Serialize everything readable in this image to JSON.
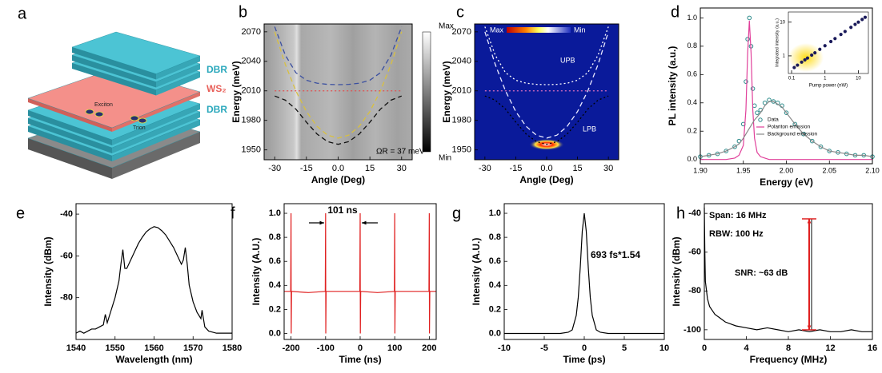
{
  "diagram": {
    "panel": "a",
    "layers": [
      "DBR",
      "WS₂",
      "DBR"
    ],
    "particles": [
      "Exciton",
      "Trion"
    ]
  },
  "chart_data": [
    {
      "type": "line",
      "panel": "b",
      "xlabel": "Angle (Deg)",
      "ylabel": "Energy (meV)",
      "xlim": [
        -35,
        35
      ],
      "ylim": [
        1940,
        2078
      ],
      "xticks": [
        -30,
        -15,
        {
          "value": 0,
          "label": "0.0"
        },
        15,
        30
      ],
      "yticks": [
        1950,
        1980,
        2010,
        2040,
        2070
      ],
      "x": [
        -30,
        -25,
        -20,
        -15,
        -10,
        -5,
        0,
        5,
        10,
        15,
        20,
        25,
        30
      ],
      "series": [
        {
          "color": "#d8c040",
          "style": "dashed",
          "values": [
            2070,
            2037,
            2010,
            1989,
            1974,
            1965,
            1962,
            1965,
            1974,
            1989,
            2010,
            2037,
            2070
          ]
        },
        {
          "color": "#e05050",
          "style": "dotted",
          "values": [
            2010,
            2010,
            2010,
            2010,
            2010,
            2010,
            2010,
            2010,
            2010,
            2010,
            2010,
            2010,
            2010
          ]
        },
        {
          "color": "#3a4fa0",
          "style": "dashed",
          "values": [
            2075.2,
            2046.4,
            2028.5,
            2020.8,
            2017.8,
            2016.6,
            2016.3,
            2016.6,
            2017.8,
            2020.8,
            2028.5,
            2046.4,
            2075.2
          ]
        },
        {
          "color": "#111111",
          "style": "dashed",
          "values": [
            2004.8,
            2000.6,
            1991.5,
            1978.2,
            1966.2,
            1958.4,
            1955.7,
            1958.4,
            1966.2,
            1978.2,
            1991.5,
            2000.6,
            2004.8
          ]
        }
      ],
      "annotations": [
        "ΩR = 37 meV"
      ],
      "colorbar": [
        "Max",
        "Min"
      ]
    },
    {
      "type": "line",
      "panel": "c",
      "xlabel": "Angle (Deg)",
      "ylabel": "Energy (meV)",
      "xlim": [
        -35,
        35
      ],
      "ylim": [
        1940,
        2078
      ],
      "xticks": [
        -30,
        -15,
        {
          "value": 0,
          "label": "0.0"
        },
        15,
        30
      ],
      "yticks": [
        1950,
        1980,
        2010,
        2040,
        2070
      ],
      "x": [
        -30,
        -25,
        -20,
        -15,
        -10,
        -5,
        0,
        5,
        10,
        15,
        20,
        25,
        30
      ],
      "series": [
        {
          "color": "#e8e8ff",
          "style": "dashed",
          "values": [
            2070,
            2037,
            2010,
            1989,
            1974,
            1965,
            1962,
            1965,
            1974,
            1989,
            2010,
            2037,
            2070
          ]
        },
        {
          "color": "#e070c0",
          "style": "dotted",
          "values": [
            2010,
            2010,
            2010,
            2010,
            2010,
            2010,
            2010,
            2010,
            2010,
            2010,
            2010,
            2010,
            2010
          ]
        },
        {
          "color": "#ffffff",
          "style": "dotted",
          "values": [
            2075.2,
            2046.4,
            2028.5,
            2020.8,
            2017.8,
            2016.6,
            2016.3,
            2016.6,
            2017.8,
            2020.8,
            2028.5,
            2046.4,
            2075.2
          ]
        },
        {
          "color": "#000000",
          "style": "dotted",
          "values": [
            2004.8,
            2000.6,
            1991.5,
            1978.2,
            1966.2,
            1958.4,
            1955.7,
            1958.4,
            1966.2,
            1978.2,
            1991.5,
            2000.6,
            2004.8
          ]
        }
      ],
      "annotations": [
        "UPB",
        "LPB"
      ],
      "colorbar": [
        "Max",
        "Min"
      ]
    },
    {
      "type": "line",
      "panel": "d",
      "xlabel": "Energy (eV)",
      "ylabel": "PL intensity (a.u.)",
      "xlim": [
        1.9,
        2.1
      ],
      "ylim": [
        -0.03,
        1.07
      ],
      "xticks": [
        {
          "value": 1.9,
          "label": "1.90"
        },
        {
          "value": 1.95,
          "label": "1.95"
        },
        {
          "value": 2,
          "label": "2.00"
        },
        {
          "value": 2.05,
          "label": "2.05"
        },
        {
          "value": 2.1,
          "label": "2.10"
        }
      ],
      "yticks": [
        {
          "value": 0,
          "label": "0.0"
        },
        0.2,
        0.4,
        0.6,
        0.8,
        {
          "value": 1,
          "label": "1.0"
        }
      ],
      "x": [
        1.9,
        1.91,
        1.92,
        1.93,
        1.94,
        1.945,
        1.95,
        1.953,
        1.955,
        1.957,
        1.959,
        1.961,
        1.963,
        1.966,
        1.97,
        1.975,
        1.98,
        1.985,
        1.99,
        1.995,
        2.0,
        2.01,
        2.02,
        2.03,
        2.04,
        2.05,
        2.06,
        2.07,
        2.08,
        2.09,
        2.1
      ],
      "series": [
        {
          "name": "Data",
          "color": "#2a8a8a",
          "style": "markers",
          "values": [
            0.02,
            0.03,
            0.04,
            0.06,
            0.09,
            0.13,
            0.25,
            0.55,
            0.85,
            1.0,
            0.8,
            0.5,
            0.38,
            0.33,
            0.35,
            0.4,
            0.42,
            0.41,
            0.4,
            0.38,
            0.33,
            0.25,
            0.18,
            0.13,
            0.09,
            0.06,
            0.05,
            0.04,
            0.03,
            0.03,
            0.02
          ]
        },
        {
          "name": "Polariton emission",
          "color": "#e0409a",
          "style": "solid",
          "values": [
            0,
            0,
            0,
            0,
            0.01,
            0.03,
            0.1,
            0.35,
            0.75,
            0.98,
            0.75,
            0.35,
            0.15,
            0.05,
            0.02,
            0.01,
            0,
            0,
            0,
            0,
            0,
            0,
            0,
            0,
            0,
            0,
            0,
            0,
            0,
            0,
            0
          ]
        },
        {
          "name": "Background emission",
          "color": "#888888",
          "style": "solid",
          "values": [
            0.02,
            0.03,
            0.04,
            0.06,
            0.09,
            0.11,
            0.15,
            0.18,
            0.2,
            0.22,
            0.24,
            0.26,
            0.28,
            0.3,
            0.33,
            0.38,
            0.41,
            0.41,
            0.39,
            0.37,
            0.33,
            0.25,
            0.18,
            0.13,
            0.09,
            0.06,
            0.05,
            0.04,
            0.03,
            0.03,
            0.02
          ]
        }
      ],
      "legend": "right"
    },
    {
      "type": "scatter",
      "xlabel": "Pump power (nW)",
      "ylabel": "Integrated intensity (a.u.)",
      "log": true,
      "xlim": [
        0.08,
        20
      ],
      "ylim": [
        0.3,
        20
      ],
      "xticks": [
        0.1,
        1,
        10
      ],
      "yticks": [
        1,
        10
      ],
      "x": [
        0.12,
        0.15,
        0.2,
        0.25,
        0.3,
        0.4,
        0.5,
        0.7,
        1,
        1.5,
        2,
        3,
        4,
        6,
        8,
        10,
        13,
        16
      ],
      "series": [
        {
          "color": "#1a1a5a",
          "style": "markers",
          "values": [
            0.45,
            0.53,
            0.65,
            0.76,
            0.86,
            1.05,
            1.23,
            1.56,
            2,
            2.66,
            3.25,
            4.32,
            5.28,
            7.0,
            8.57,
            10.0,
            12.0,
            13.9
          ]
        }
      ]
    },
    {
      "type": "line",
      "panel": "e",
      "xlabel": "Wavelength (nm)",
      "ylabel": "Intensity (dBm)",
      "xlim": [
        1540,
        1580
      ],
      "ylim": [
        -100,
        -35
      ],
      "xticks": [
        1540,
        1550,
        1560,
        1570,
        1580
      ],
      "yticks": [
        -40,
        -60,
        -80
      ],
      "x": [
        1540,
        1541,
        1542,
        1543,
        1544,
        1545,
        1546,
        1547,
        1547.5,
        1548,
        1549,
        1550,
        1551,
        1551.5,
        1552,
        1552.5,
        1553,
        1554,
        1555,
        1556,
        1557,
        1558,
        1559,
        1560,
        1561,
        1562,
        1563,
        1564,
        1565,
        1566,
        1567,
        1567.5,
        1568,
        1568.5,
        1569,
        1570,
        1571,
        1572,
        1572.3,
        1573,
        1574,
        1576,
        1578,
        1580
      ],
      "series": [
        {
          "color": "#000000",
          "style": "solid",
          "values": [
            -97,
            -96,
            -97,
            -96,
            -95,
            -95,
            -94,
            -93,
            -88,
            -92,
            -86,
            -80,
            -72,
            -64,
            -57,
            -66,
            -66,
            -62,
            -58,
            -54,
            -51,
            -48.5,
            -47,
            -46,
            -46.5,
            -48,
            -50,
            -53,
            -56,
            -60,
            -64,
            -62,
            -56,
            -64,
            -74,
            -82,
            -87,
            -90,
            -86,
            -94,
            -96,
            -97,
            -97,
            -97
          ]
        }
      ]
    },
    {
      "type": "line",
      "panel": "f",
      "xlabel": "Time (ns)",
      "ylabel": "Intensity (A.U.)",
      "xlim": [
        -220,
        220
      ],
      "ylim": [
        -0.05,
        1.08
      ],
      "xticks": [
        -200,
        -100,
        0,
        100,
        200
      ],
      "yticks": [
        {
          "value": 0,
          "label": "0.0"
        },
        0.2,
        0.4,
        0.6,
        0.8,
        {
          "value": 1,
          "label": "1.0"
        }
      ],
      "x": [
        -220,
        -201,
        -200,
        -199.5,
        -198.5,
        -150,
        -101,
        -100,
        -99.5,
        -98.5,
        -50,
        -1,
        0,
        0.5,
        1.5,
        50,
        99,
        100,
        100.5,
        101.5,
        150,
        199,
        200,
        200.5,
        201.5,
        220
      ],
      "series": [
        {
          "color": "#e02020",
          "style": "solid",
          "values": [
            0.35,
            0.35,
            1.0,
            0.0,
            0.35,
            0.34,
            0.35,
            1.0,
            0.0,
            0.35,
            0.35,
            0.35,
            1.0,
            0.0,
            0.35,
            0.34,
            0.35,
            1.0,
            0.0,
            0.35,
            0.35,
            0.35,
            1.0,
            0.0,
            0.35,
            0.35
          ]
        }
      ],
      "annotations": [
        "101 ns"
      ]
    },
    {
      "type": "line",
      "panel": "g",
      "xlabel": "Time (ps)",
      "ylabel": "Intensity (A.U.)",
      "xlim": [
        -10,
        10
      ],
      "ylim": [
        -0.05,
        1.08
      ],
      "xticks": [
        -10,
        -5,
        0,
        5,
        10
      ],
      "yticks": [
        {
          "value": 0,
          "label": "0.0"
        },
        0.2,
        0.4,
        0.6,
        0.8,
        {
          "value": 1,
          "label": "1.0"
        }
      ],
      "x": [
        -10,
        -3,
        -2,
        -1.5,
        -1,
        -0.75,
        -0.5,
        -0.25,
        0,
        0.25,
        0.5,
        0.75,
        1,
        1.5,
        2,
        3,
        10
      ],
      "series": [
        {
          "color": "#000000",
          "style": "solid",
          "values": [
            0,
            0,
            0.01,
            0.03,
            0.15,
            0.3,
            0.55,
            0.85,
            1.0,
            0.85,
            0.55,
            0.3,
            0.15,
            0.03,
            0.01,
            0,
            0
          ]
        }
      ],
      "annotations": [
        "693 fs*1.54"
      ]
    },
    {
      "type": "line",
      "panel": "h",
      "xlabel": "Frequency (MHz)",
      "ylabel": "Intensity (dBm)",
      "xlim": [
        0,
        16
      ],
      "ylim": [
        -105,
        -35
      ],
      "xticks": [
        0,
        4,
        8,
        12,
        16
      ],
      "yticks": [
        -40,
        -60,
        -80,
        -100
      ],
      "x": [
        0,
        0.05,
        0.1,
        0.3,
        0.5,
        1,
        1.5,
        2,
        2.5,
        3,
        4,
        5,
        6,
        7,
        8,
        9,
        10,
        11,
        12,
        13,
        14,
        15,
        16
      ],
      "series": [
        {
          "color": "#000000",
          "style": "solid",
          "values": [
            -37,
            -60,
            -75,
            -84,
            -88,
            -92,
            -94,
            -96,
            -97,
            -98,
            -99,
            -100,
            -99,
            -100,
            -101,
            -100,
            -101,
            -100,
            -101,
            -101,
            -100,
            -101,
            -101
          ]
        }
      ],
      "annotations": [
        "Span: 16 MHz",
        "RBW: 100 Hz",
        "SNR: ~63 dB"
      ]
    }
  ]
}
